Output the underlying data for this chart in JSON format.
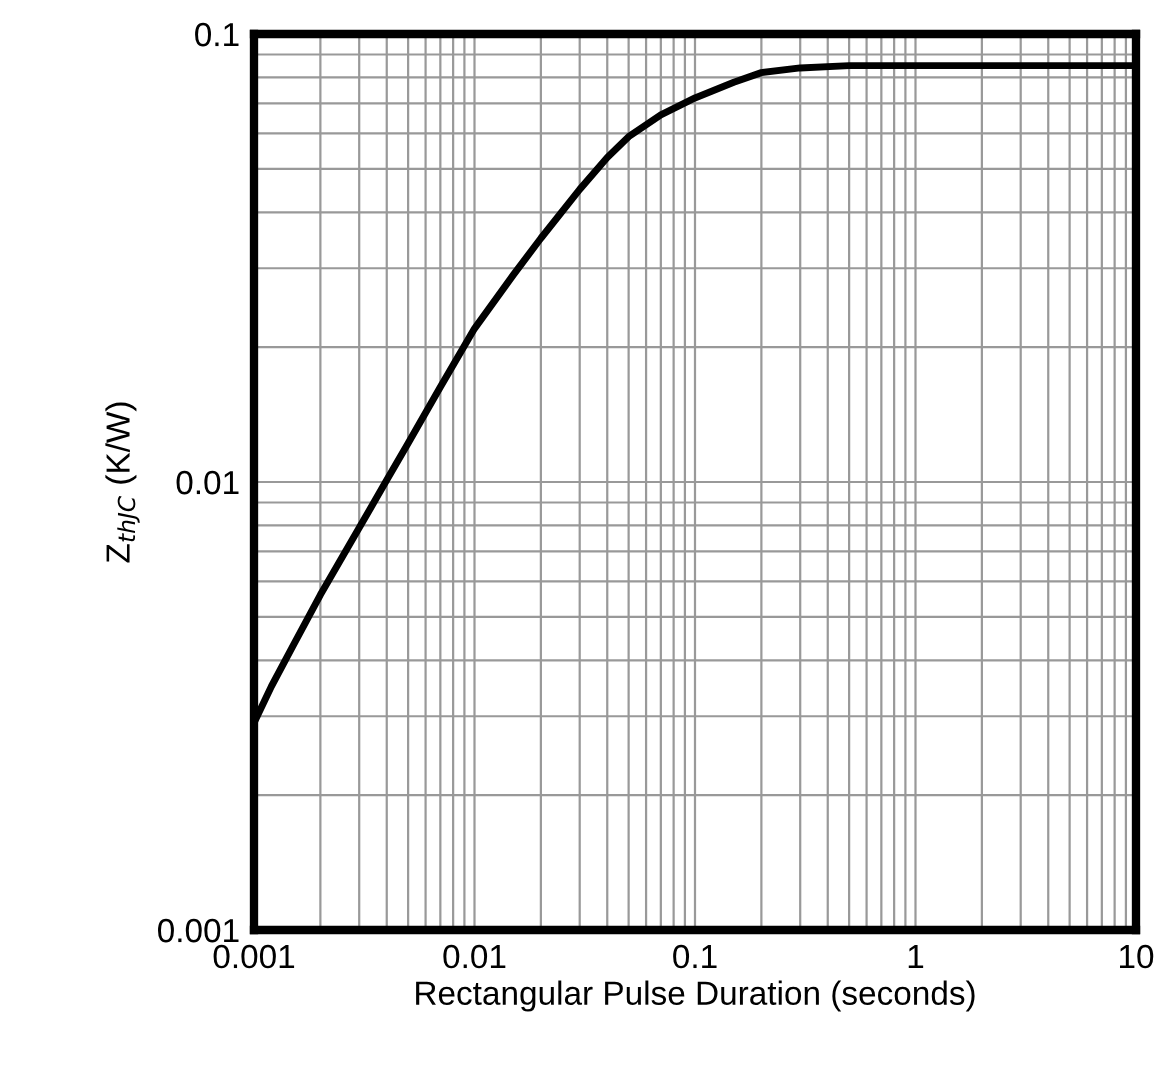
{
  "chart_data": {
    "type": "line",
    "xlabel": "Rectangular Pulse Duration (seconds)",
    "ylabel": "Z$_{thJC}$ (K/W)",
    "log": "xy",
    "grid": true,
    "legend": false,
    "marker": "none",
    "line_style": "solid",
    "xlim": [
      0.001,
      10
    ],
    "ylim": [
      0.001,
      0.1
    ],
    "xticks": [
      0.001,
      0.01,
      0.1,
      1,
      10
    ],
    "yticks": [
      0.001,
      0.01,
      0.1
    ],
    "series": [
      {
        "color": "#000000",
        "x": [
          0.001,
          0.0012,
          0.0015,
          0.002,
          0.003,
          0.004,
          0.005,
          0.007,
          0.01,
          0.015,
          0.02,
          0.03,
          0.04,
          0.05,
          0.07,
          0.1,
          0.15,
          0.2,
          0.3,
          0.5,
          1,
          2,
          5,
          10
        ],
        "values": [
          0.0029,
          0.0035,
          0.0043,
          0.0056,
          0.0079,
          0.0101,
          0.0122,
          0.0163,
          0.022,
          0.029,
          0.035,
          0.045,
          0.053,
          0.059,
          0.066,
          0.072,
          0.078,
          0.082,
          0.084,
          0.085,
          0.085,
          0.085,
          0.085,
          0.085
        ]
      }
    ]
  }
}
